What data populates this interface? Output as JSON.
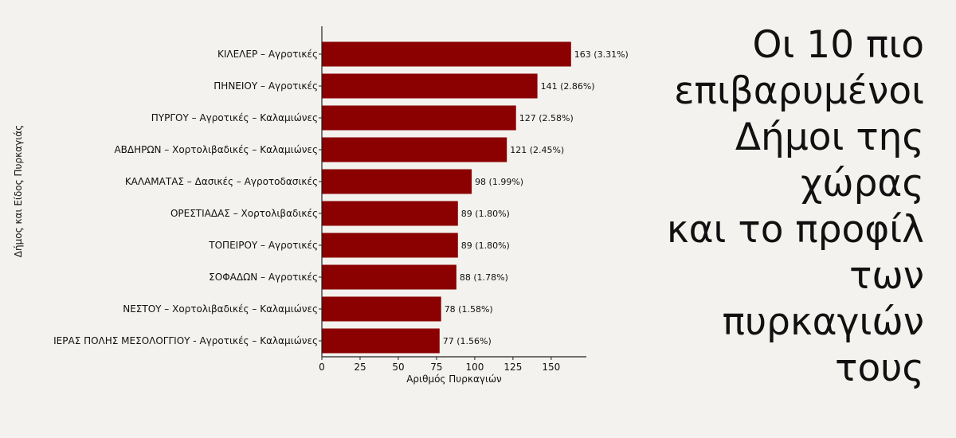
{
  "colors": {
    "background": "#f3f2ee",
    "bar": "#8b0000",
    "text": "#111111",
    "axis": "#222222"
  },
  "title_lines": [
    "Οι 10 πιο",
    "επιβαρυμένοι",
    "Δήμοι της",
    "χώρας",
    "και το προφίλ",
    "των",
    "πυρκαγιών",
    "τους"
  ],
  "chart_data": {
    "type": "bar",
    "orientation": "horizontal",
    "xlabel": "Αριθμός Πυρκαγιών",
    "ylabel": "Δήμος και Είδος Πυρκαγιάς",
    "xlim": [
      0,
      173
    ],
    "xticks": [
      0,
      25,
      50,
      75,
      100,
      125,
      150
    ],
    "grid": false,
    "categories": [
      "ΚΙΛΕΛΕΡ – Αγροτικές",
      "ΠΗΝΕΙΟΥ – Αγροτικές",
      "ΠΥΡΓΟΥ – Αγροτικές – Καλαμιώνες",
      "ΑΒΔΗΡΩΝ – Χορτολιβαδικές – Καλαμιώνες",
      "ΚΑΛΑΜΑΤΑΣ – Δασικές – Αγροτοδασικές",
      "ΟΡΕΣΤΙΑΔΑΣ – Χορτολιβαδικές",
      "ΤΟΠΕΙΡΟΥ – Αγροτικές",
      "ΣΟΦΑΔΩΝ – Αγροτικές",
      "ΝΕΣΤΟΥ – Χορτολιβαδικές – Καλαμιώνες",
      "ΙΕΡΑΣ ΠΟΛΗΣ ΜΕΣΟΛΟΓΓΙΟΥ  - Αγροτικές – Καλαμιώνες"
    ],
    "values": [
      163,
      141,
      127,
      121,
      98,
      89,
      89,
      88,
      78,
      77
    ],
    "data_labels": [
      "163 (3.31%)",
      "141 (2.86%)",
      "127 (2.58%)",
      "121 (2.45%)",
      "98 (1.99%)",
      "89 (1.80%)",
      "89 (1.80%)",
      "88 (1.78%)",
      "78 (1.58%)",
      "77 (1.56%)"
    ]
  }
}
